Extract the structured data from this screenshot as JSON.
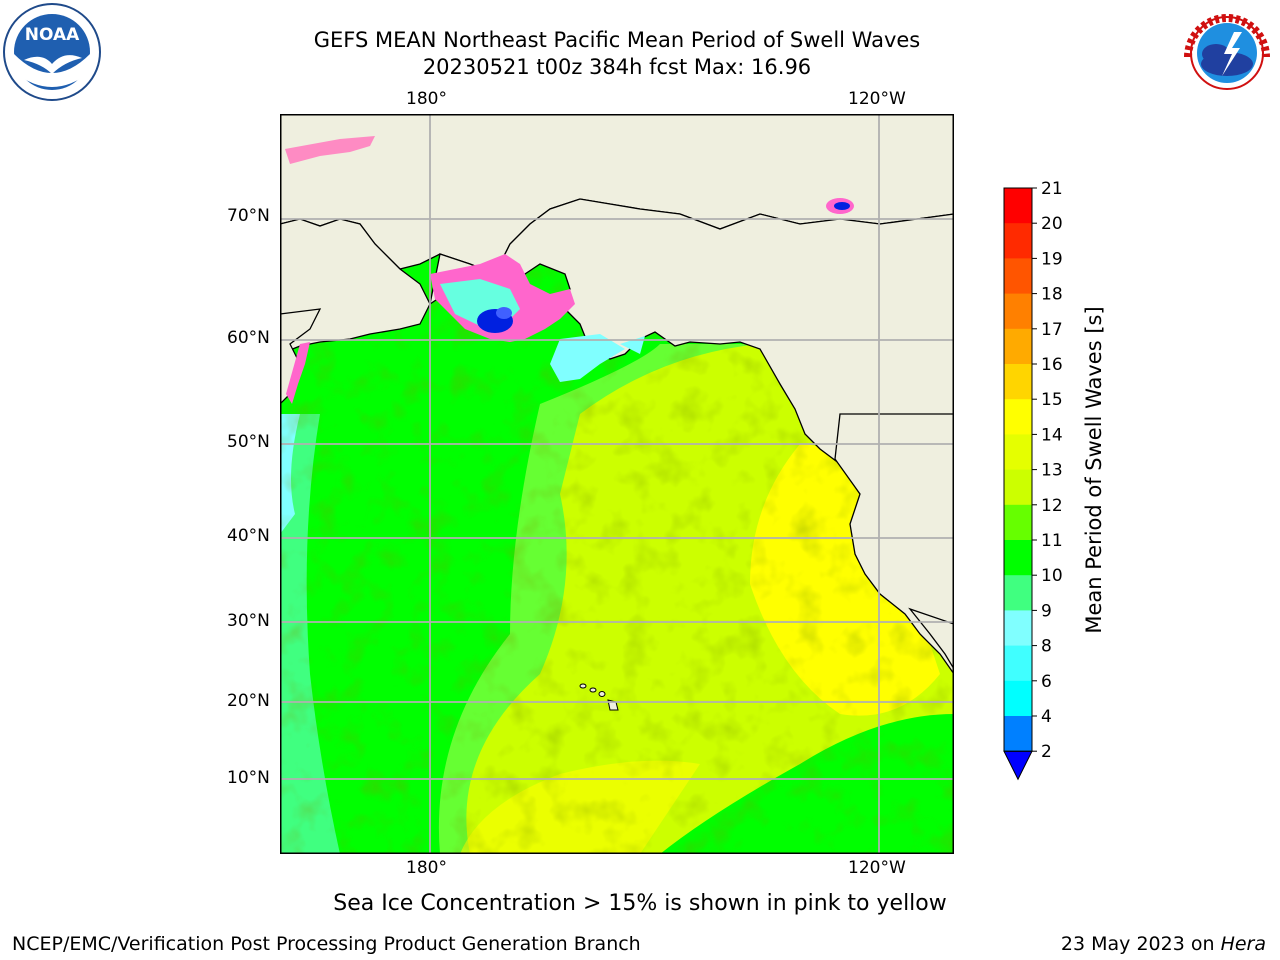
{
  "title": {
    "line1": "GEFS MEAN Northeast Pacific Mean Period of Swell Waves",
    "line2": "20230521 t00z 384h fcst   Max: 16.96"
  },
  "map": {
    "lon_labels": [
      "180°",
      "120°W"
    ],
    "lat_labels": [
      "70°N",
      "60°N",
      "50°N",
      "40°N",
      "30°N",
      "20°N",
      "10°N"
    ],
    "land_color": "#efefdf",
    "ocean_colors": {
      "green": "#00ff00",
      "lightgreen": "#66ff33",
      "yellowgreen": "#ccff00",
      "yellow": "#ffff00"
    }
  },
  "colorbar": {
    "label": "Mean Period of Swell Waves [s]",
    "ticks": [
      "21",
      "20",
      "19",
      "18",
      "17",
      "16",
      "15",
      "14",
      "13",
      "12",
      "11",
      "10",
      "9",
      "8",
      "6",
      "4",
      "2"
    ],
    "colors": [
      "#ff0000",
      "#ff2a00",
      "#ff5500",
      "#ff8000",
      "#ffaa00",
      "#ffd500",
      "#ffff00",
      "#e5ff00",
      "#ccff00",
      "#66ff00",
      "#00ff00",
      "#40ff80",
      "#80ffff",
      "#40ffff",
      "#00ffff",
      "#0080ff",
      "#0000ff"
    ]
  },
  "notice": "Sea Ice Concentration > 15% is shown in pink to yellow",
  "footer": {
    "left": "NCEP/EMC/Verification Post Processing Product Generation Branch",
    "right_date": "23 May 2023 on ",
    "right_host": "Hera"
  },
  "logos": {
    "noaa_text": "NOAA",
    "nws_text": "NATIONAL WEATHER SERVICE"
  }
}
